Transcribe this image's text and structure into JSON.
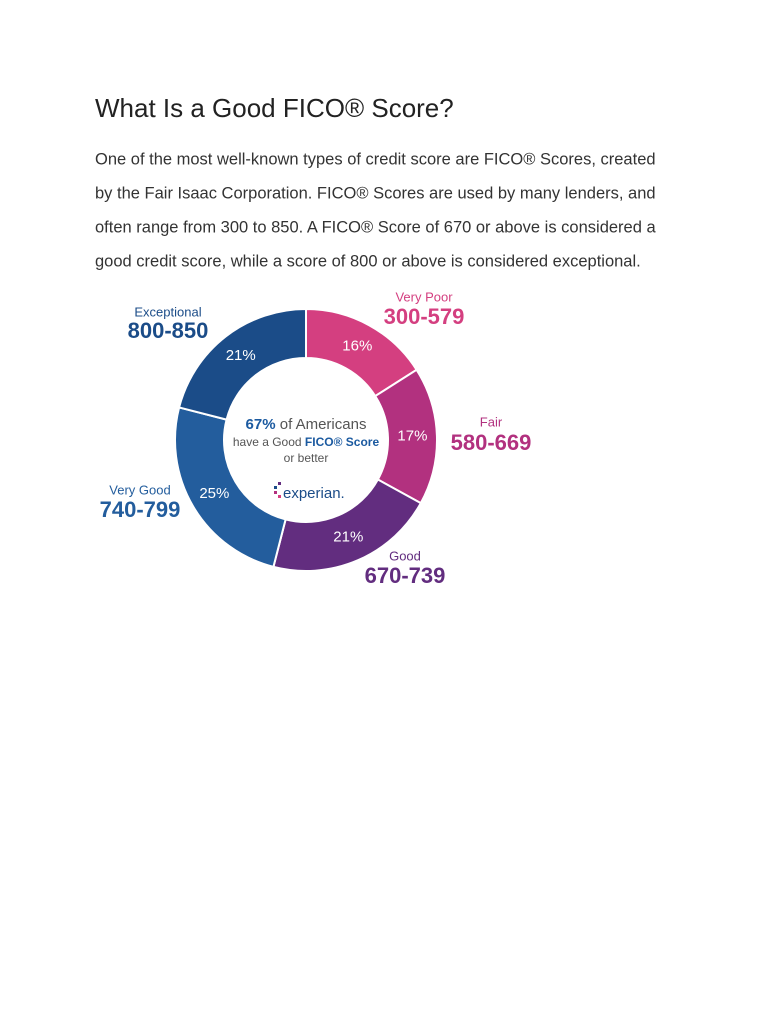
{
  "header": {
    "title": "What Is a Good FICO® Score?"
  },
  "paragraph": {
    "lines": [
      "One of the most well-known types of credit score are FICO® Scores, created",
      "by the Fair Isaac Corporation. FICO® Scores are used by many lenders, and",
      "often range from 300 to 850. A FICO® Score of 670 or above is considered a",
      "good credit score, while a score of 800 or above is considered exceptional."
    ]
  },
  "chart_data": {
    "type": "donut",
    "categories": [
      "Very Poor",
      "Fair",
      "Good",
      "Very Good",
      "Exceptional"
    ],
    "ranges": [
      "300-579",
      "580-669",
      "670-739",
      "740-799",
      "800-850"
    ],
    "values": [
      16,
      17,
      21,
      25,
      21
    ],
    "value_labels": [
      "16%",
      "17%",
      "21%",
      "25%",
      "21%"
    ],
    "colors": [
      "#d43f80",
      "#b2317f",
      "#622d7f",
      "#235d9d",
      "#1b4c88"
    ],
    "center": {
      "highlight": "67%",
      "line1": "of Americans",
      "line2a": "have a Good",
      "line2b": "FICO® Score",
      "line3": "or better"
    },
    "brand": "experian."
  }
}
